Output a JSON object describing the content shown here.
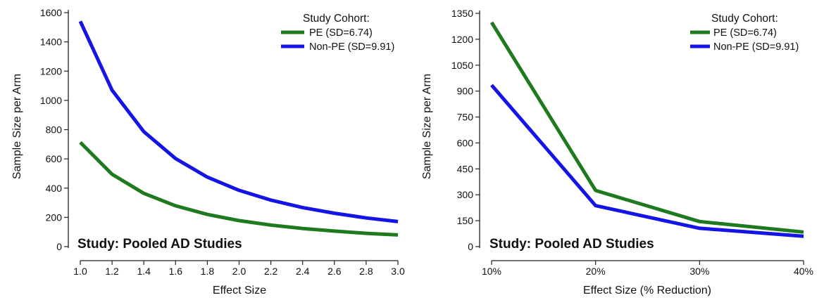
{
  "chart_data": [
    {
      "type": "line",
      "xlabel": "Effect Size",
      "ylabel": "Sample Size per Arm",
      "x_tick_labels": [
        "1.0",
        "1.2",
        "1.4",
        "1.6",
        "1.8",
        "2.0",
        "2.2",
        "2.4",
        "2.6",
        "2.8",
        "3.0"
      ],
      "x": [
        1.0,
        1.2,
        1.4,
        1.6,
        1.8,
        2.0,
        2.2,
        2.4,
        2.6,
        2.8,
        3.0
      ],
      "xlim": [
        1.0,
        3.0
      ],
      "y_tick_labels": [
        "0",
        "200",
        "400",
        "600",
        "800",
        "1000",
        "1200",
        "1400",
        "1600"
      ],
      "y_ticks": [
        0,
        200,
        400,
        600,
        800,
        1000,
        1200,
        1400,
        1600
      ],
      "ylim": [
        0,
        1600
      ],
      "legend_title": "Study Cohort:",
      "legend_position": "top-right",
      "annotation": "Study:  Pooled AD Studies",
      "grid": false,
      "series": [
        {
          "name": "PE (SD=6.74)",
          "color": "#1f7a1f",
          "values": [
            713,
            495,
            364,
            279,
            220,
            178,
            147,
            124,
            106,
            91,
            80
          ]
        },
        {
          "name": "Non-PE (SD=9.91)",
          "color": "#1414e6",
          "values": [
            1541,
            1070,
            786,
            602,
            475,
            385,
            318,
            267,
            228,
            196,
            171
          ]
        }
      ]
    },
    {
      "type": "line",
      "xlabel": "Effect Size (% Reduction)",
      "ylabel": "Sample Size per Arm",
      "x_tick_labels": [
        "10%",
        "20%",
        "30%",
        "40%"
      ],
      "x": [
        10,
        20,
        30,
        40
      ],
      "xlim": [
        10,
        40
      ],
      "y_tick_labels": [
        "0",
        "150",
        "300",
        "450",
        "600",
        "750",
        "900",
        "1050",
        "1200",
        "1350"
      ],
      "y_ticks": [
        0,
        150,
        300,
        450,
        600,
        750,
        900,
        1050,
        1200,
        1350
      ],
      "ylim": [
        0,
        1350
      ],
      "legend_title": "Study Cohort:",
      "legend_position": "top-right",
      "annotation": "Study:  Pooled AD Studies",
      "grid": false,
      "series": [
        {
          "name": "PE (SD=6.74)",
          "color": "#1f7a1f",
          "values": [
            1298,
            325,
            145,
            84
          ]
        },
        {
          "name": "Non-PE (SD=9.91)",
          "color": "#1414e6",
          "values": [
            935,
            237,
            106,
            60
          ]
        }
      ]
    }
  ]
}
